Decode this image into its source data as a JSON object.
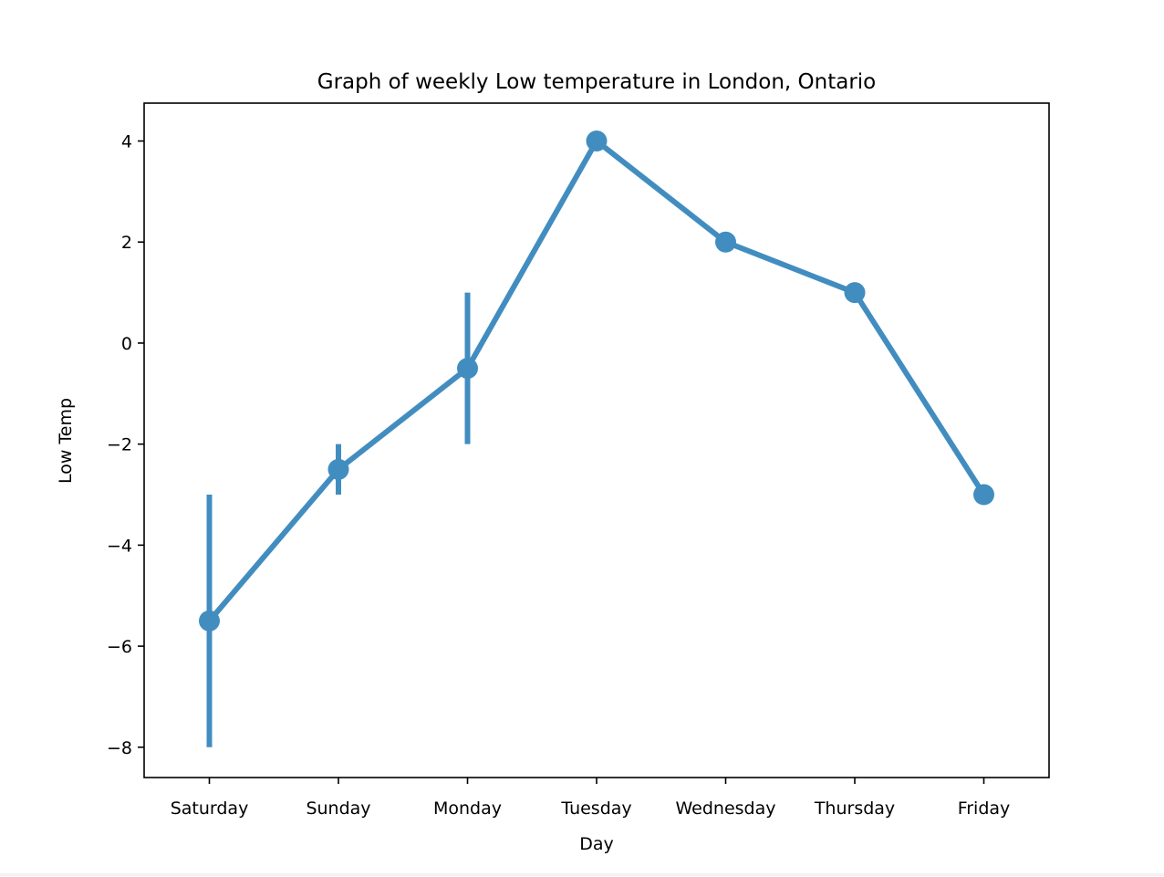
{
  "chart_data": {
    "type": "line",
    "title": "Graph of weekly Low temperature in London, Ontario",
    "xlabel": "Day",
    "ylabel": "Low Temp",
    "categories": [
      "Saturday",
      "Sunday",
      "Monday",
      "Tuesday",
      "Wednesday",
      "Thursday",
      "Friday"
    ],
    "series": [
      {
        "values": [
          -5.5,
          -2.5,
          -0.5,
          4,
          2,
          1,
          -3
        ],
        "error_low": [
          -8,
          -3,
          -2,
          null,
          null,
          null,
          null
        ],
        "error_high": [
          -3,
          -2,
          1,
          null,
          null,
          null,
          null
        ],
        "color": "#428dc0"
      }
    ],
    "ylim": [
      -8.6,
      4.75
    ],
    "yticks": [
      4,
      2,
      0,
      -2,
      -4,
      -6,
      -8
    ],
    "ytick_labels": [
      "4",
      "2",
      "0",
      "−2",
      "−4",
      "−6",
      "−8"
    ],
    "grid": false,
    "legend": "none"
  }
}
